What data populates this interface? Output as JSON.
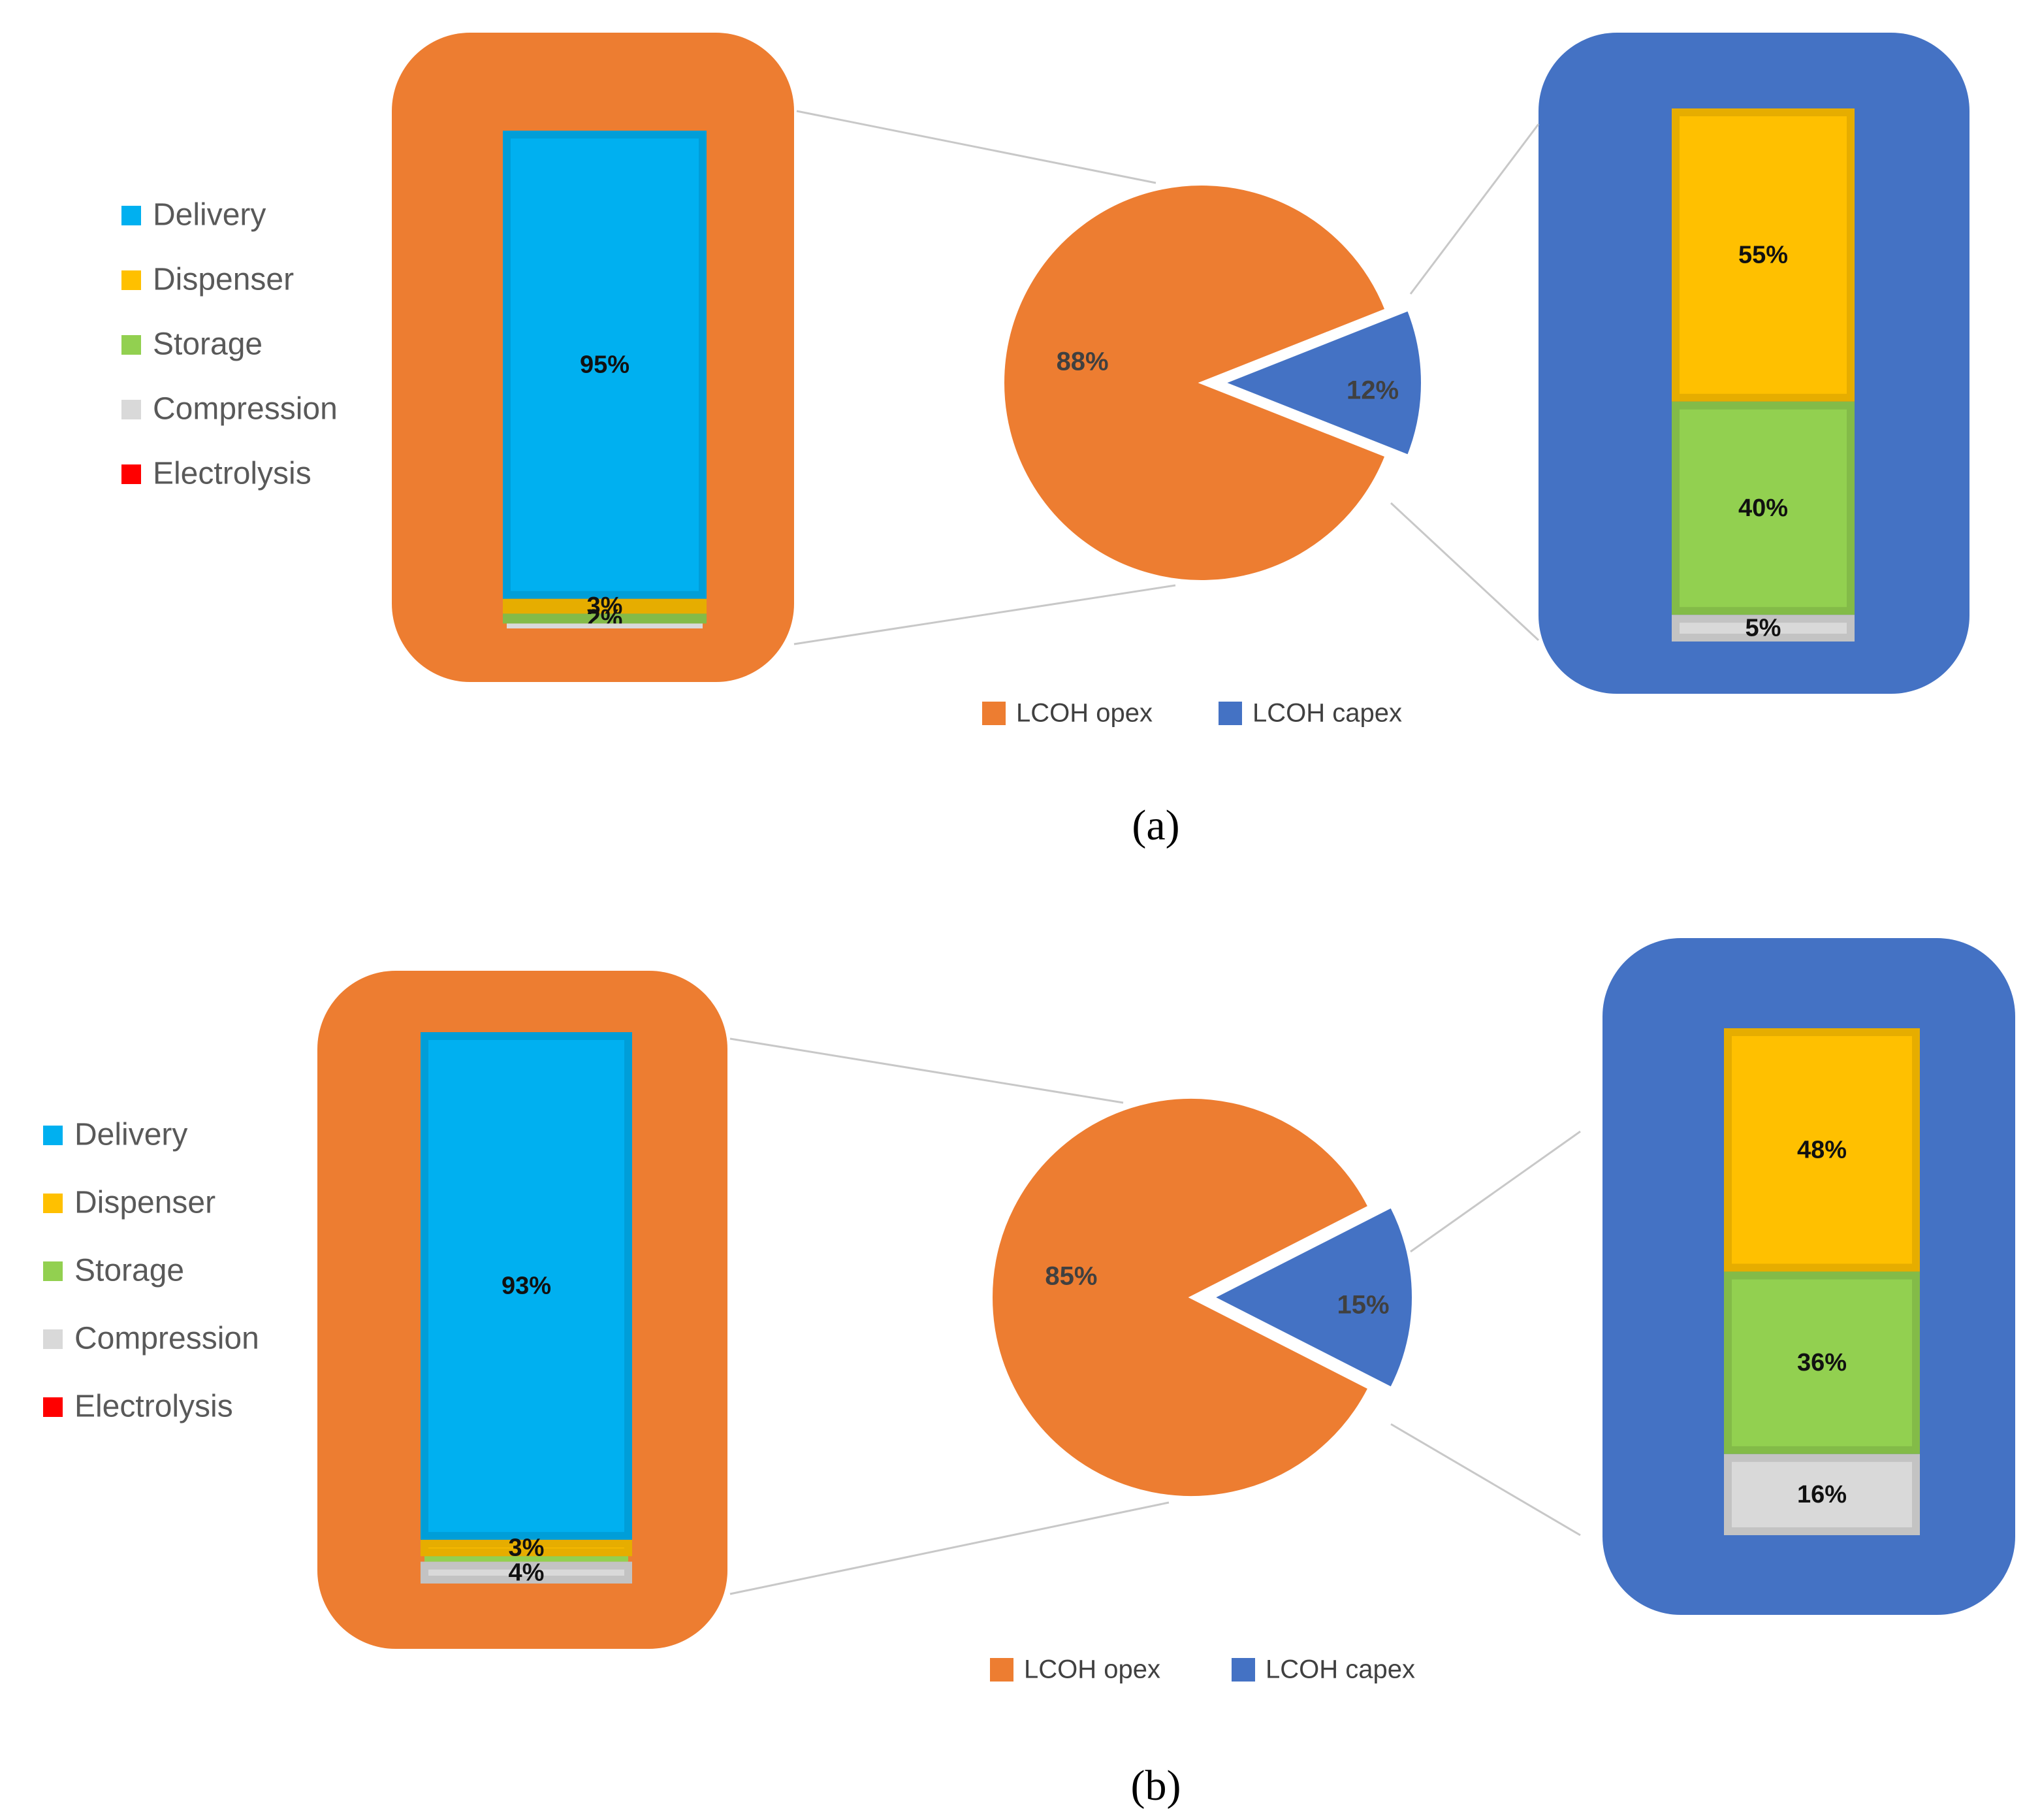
{
  "chart_data": [
    {
      "type": "bar-of-pie",
      "caption": "(a)",
      "categories": [
        "Delivery",
        "Dispenser",
        "Storage",
        "Compression",
        "Electrolysis"
      ],
      "colors": [
        "#00b0f0",
        "#ffc000",
        "#92d050",
        "#d9d9d9",
        "#ff0000"
      ],
      "opex_values": [
        95,
        3,
        2,
        1,
        0
      ],
      "opex_value_labels": [
        "95%",
        "3%",
        "2%",
        null,
        null
      ],
      "capex_values": [
        0,
        55,
        40,
        5,
        0
      ],
      "capex_value_labels": [
        null,
        "55%",
        "40%",
        "5%",
        null
      ],
      "pie": {
        "categories": [
          "LCOH opex",
          "LCOH capex"
        ],
        "colors": [
          "#ed7d31",
          "#4472c4"
        ],
        "values": [
          88,
          12
        ],
        "value_labels": [
          "88%",
          "12%"
        ]
      }
    },
    {
      "type": "bar-of-pie",
      "caption": "(b)",
      "categories": [
        "Delivery",
        "Dispenser",
        "Storage",
        "Compression",
        "Electrolysis"
      ],
      "colors": [
        "#00b0f0",
        "#ffc000",
        "#92d050",
        "#d9d9d9",
        "#ff0000"
      ],
      "opex_values": [
        93,
        3,
        1,
        4,
        0
      ],
      "opex_value_labels": [
        "93%",
        "3%",
        null,
        "4%",
        null
      ],
      "capex_values": [
        0,
        48,
        36,
        16,
        0
      ],
      "capex_value_labels": [
        null,
        "48%",
        "36%",
        "16%",
        null
      ],
      "pie": {
        "categories": [
          "LCOH opex",
          "LCOH capex"
        ],
        "colors": [
          "#ed7d31",
          "#4472c4"
        ],
        "values": [
          85,
          15
        ],
        "value_labels": [
          "85%",
          "15%"
        ]
      }
    }
  ]
}
